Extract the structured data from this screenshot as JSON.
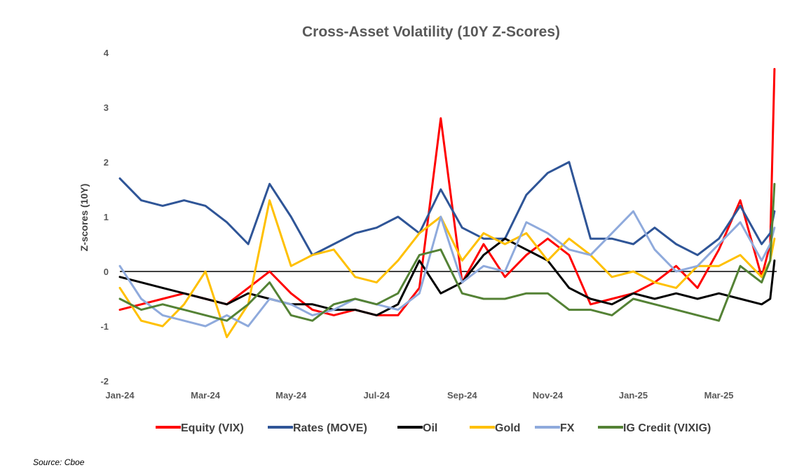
{
  "chart_data": {
    "type": "line",
    "title": "Cross-Asset Volatility (10Y Z-Scores)",
    "xlabel": "",
    "ylabel": "Z-scores (10Y)",
    "ylim": [
      -2,
      4
    ],
    "yticks": [
      -2,
      -1,
      0,
      1,
      2,
      3,
      4
    ],
    "x_tick_labels": [
      "Jan-24",
      "Mar-24",
      "May-24",
      "Jul-24",
      "Sep-24",
      "Nov-24",
      "Jan-25",
      "Mar-25"
    ],
    "x_tick_positions": [
      0,
      2,
      4,
      6,
      8,
      10,
      12,
      14
    ],
    "xlim": [
      0,
      15.35
    ],
    "x": [
      0,
      0.5,
      1,
      1.5,
      2,
      2.5,
      3,
      3.5,
      4,
      4.5,
      5,
      5.5,
      6,
      6.5,
      7,
      7.5,
      8,
      8.5,
      9,
      9.5,
      10,
      10.5,
      11,
      11.5,
      12,
      12.5,
      13,
      13.5,
      14,
      14.5,
      15,
      15.2,
      15.3
    ],
    "series": [
      {
        "name": "Equity (VIX)",
        "color": "#ff0000",
        "values": [
          -0.7,
          -0.6,
          -0.5,
          -0.4,
          -0.5,
          -0.6,
          -0.3,
          0.0,
          -0.4,
          -0.7,
          -0.8,
          -0.7,
          -0.8,
          -0.8,
          -0.3,
          2.8,
          -0.2,
          0.5,
          -0.1,
          0.3,
          0.6,
          0.3,
          -0.6,
          -0.5,
          -0.4,
          -0.2,
          0.1,
          -0.3,
          0.4,
          1.3,
          -0.1,
          0.5,
          3.7
        ]
      },
      {
        "name": "Rates (MOVE)",
        "color": "#2f5597",
        "values": [
          1.7,
          1.3,
          1.2,
          1.3,
          1.2,
          0.9,
          0.5,
          1.6,
          1.0,
          0.3,
          0.5,
          0.7,
          0.8,
          1.0,
          0.7,
          1.5,
          0.8,
          0.6,
          0.6,
          1.4,
          1.8,
          2.0,
          0.6,
          0.6,
          0.5,
          0.8,
          0.5,
          0.3,
          0.6,
          1.2,
          0.5,
          0.7,
          1.1
        ]
      },
      {
        "name": "Oil",
        "color": "#000000",
        "values": [
          -0.1,
          -0.2,
          -0.3,
          -0.4,
          -0.5,
          -0.6,
          -0.4,
          -0.5,
          -0.6,
          -0.6,
          -0.7,
          -0.7,
          -0.8,
          -0.6,
          0.2,
          -0.4,
          -0.2,
          0.3,
          0.6,
          0.4,
          0.2,
          -0.3,
          -0.5,
          -0.6,
          -0.4,
          -0.5,
          -0.4,
          -0.5,
          -0.4,
          -0.5,
          -0.6,
          -0.5,
          0.2
        ]
      },
      {
        "name": "Gold",
        "color": "#ffc000",
        "values": [
          -0.3,
          -0.9,
          -1.0,
          -0.6,
          0.0,
          -1.2,
          -0.6,
          1.3,
          0.1,
          0.3,
          0.4,
          -0.1,
          -0.2,
          0.2,
          0.7,
          1.0,
          0.2,
          0.7,
          0.5,
          0.7,
          0.2,
          0.6,
          0.3,
          -0.1,
          0.0,
          -0.2,
          -0.3,
          0.1,
          0.1,
          0.3,
          -0.1,
          0.2,
          0.6
        ]
      },
      {
        "name": "FX",
        "color": "#8faadc",
        "values": [
          0.1,
          -0.5,
          -0.8,
          -0.9,
          -1.0,
          -0.8,
          -1.0,
          -0.5,
          -0.6,
          -0.8,
          -0.7,
          -0.5,
          -0.6,
          -0.7,
          -0.4,
          1.0,
          -0.2,
          0.1,
          0.0,
          0.9,
          0.7,
          0.4,
          0.3,
          0.7,
          1.1,
          0.4,
          0.0,
          0.1,
          0.5,
          0.9,
          0.2,
          0.5,
          0.8
        ]
      },
      {
        "name": "IG Credit (VIXIG)",
        "color": "#548235",
        "values": [
          -0.5,
          -0.7,
          -0.6,
          -0.7,
          -0.8,
          -0.9,
          -0.6,
          -0.2,
          -0.8,
          -0.9,
          -0.6,
          -0.5,
          -0.6,
          -0.4,
          0.3,
          0.4,
          -0.4,
          -0.5,
          -0.5,
          -0.4,
          -0.4,
          -0.7,
          -0.7,
          -0.8,
          -0.5,
          -0.6,
          -0.7,
          -0.8,
          -0.9,
          0.1,
          -0.2,
          0.2,
          1.6
        ]
      }
    ]
  },
  "source_note": "Source: Cboe"
}
